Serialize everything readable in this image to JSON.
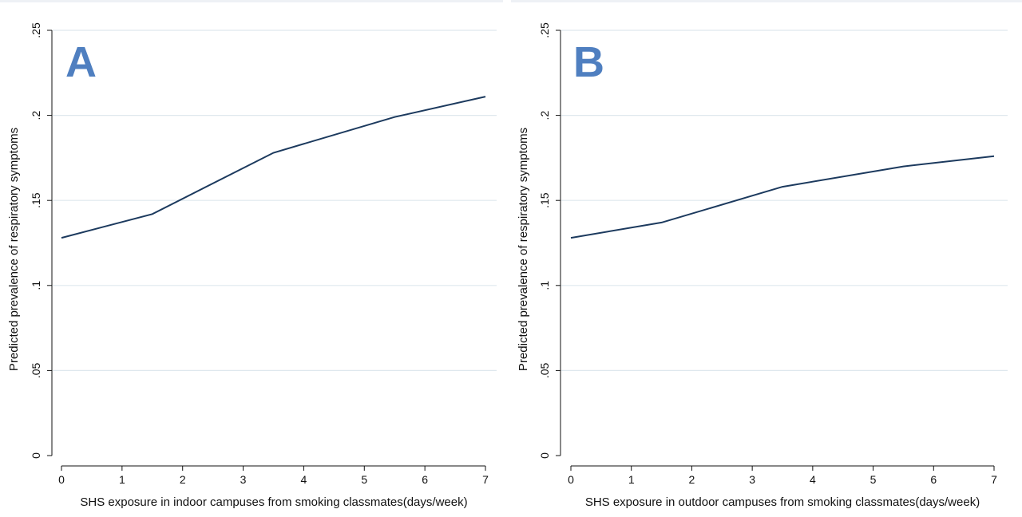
{
  "chart_data": [
    {
      "type": "line",
      "panel_label": "A",
      "xlabel": "SHS exposure in indoor campuses from smoking classmates(days/week)",
      "ylabel": "Predicted prevalence of respiratory symptoms",
      "x_ticks": [
        "0",
        "1",
        "2",
        "3",
        "4",
        "5",
        "6",
        "7"
      ],
      "y_ticks": [
        "0",
        ".05",
        ".1",
        ".15",
        ".2",
        ".25"
      ],
      "xlim": [
        0,
        7
      ],
      "ylim": [
        0,
        0.25
      ],
      "grid": true,
      "series": [
        {
          "x": [
            0,
            1.5,
            3.5,
            5.5,
            7
          ],
          "y": [
            0.128,
            0.142,
            0.178,
            0.199,
            0.211
          ]
        }
      ],
      "color": "#1c3a5e"
    },
    {
      "type": "line",
      "panel_label": "B",
      "xlabel": "SHS exposure in outdoor campuses from smoking classmates(days/week)",
      "ylabel": "Predicted prevalence of respiratory symptoms",
      "x_ticks": [
        "0",
        "1",
        "2",
        "3",
        "4",
        "5",
        "6",
        "7"
      ],
      "y_ticks": [
        "0",
        ".05",
        ".1",
        ".15",
        ".2",
        ".25"
      ],
      "xlim": [
        0,
        7
      ],
      "ylim": [
        0,
        0.25
      ],
      "grid": true,
      "series": [
        {
          "x": [
            0,
            1.5,
            3.5,
            5.5,
            7
          ],
          "y": [
            0.128,
            0.137,
            0.158,
            0.17,
            0.176
          ]
        }
      ],
      "color": "#1c3a5e"
    }
  ]
}
